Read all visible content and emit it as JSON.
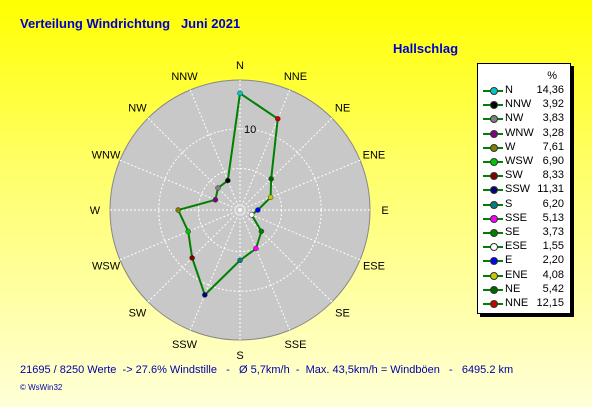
{
  "title": "Verteilung Windrichtung   Juni 2021",
  "station": "Hallschlag",
  "legend_unit": "%",
  "footer": "21695 / 8250 Werte  -> 27.6% Windstille   -   Ø 5,7km/h  -  Max. 43,5km/h = Windböen   -   6495.2 km",
  "credit": "© WsWin32",
  "chart_data": {
    "type": "radar",
    "title": "Verteilung Windrichtung   Juni 2021",
    "radial_tick": "10",
    "rmax": 16,
    "grid": true,
    "legend_position": "right",
    "directions": [
      "N",
      "NNE",
      "NE",
      "ENE",
      "E",
      "ESE",
      "SE",
      "SSE",
      "S",
      "SSW",
      "SW",
      "WSW",
      "W",
      "WNW",
      "NW",
      "NNW"
    ],
    "values": [
      14.36,
      12.15,
      5.42,
      4.08,
      2.2,
      1.55,
      3.73,
      5.13,
      6.2,
      11.31,
      8.33,
      6.9,
      7.61,
      3.28,
      3.83,
      3.92
    ],
    "line_color": "#008000",
    "legend": [
      {
        "name": "N",
        "value": "14,36",
        "color": "#00c8c8"
      },
      {
        "name": "NNW",
        "value": "3,92",
        "color": "#000000"
      },
      {
        "name": "NW",
        "value": "3,83",
        "color": "#808080"
      },
      {
        "name": "WNW",
        "value": "3,28",
        "color": "#800080"
      },
      {
        "name": "W",
        "value": "7,61",
        "color": "#808000"
      },
      {
        "name": "WSW",
        "value": "6,90",
        "color": "#00c800"
      },
      {
        "name": "SW",
        "value": "8,33",
        "color": "#800000"
      },
      {
        "name": "SSW",
        "value": "11,31",
        "color": "#000080"
      },
      {
        "name": "S",
        "value": "6,20",
        "color": "#008080"
      },
      {
        "name": "SSE",
        "value": "5,13",
        "color": "#ff00ff"
      },
      {
        "name": "SE",
        "value": "3,73",
        "color": "#008000"
      },
      {
        "name": "ESE",
        "value": "1,55",
        "color": "#ffffff"
      },
      {
        "name": "E",
        "value": "2,20",
        "color": "#0000ff"
      },
      {
        "name": "ENE",
        "value": "4,08",
        "color": "#c8c800"
      },
      {
        "name": "NE",
        "value": "5,42",
        "color": "#006400"
      },
      {
        "name": "NNE",
        "value": "12,15",
        "color": "#c80000"
      }
    ]
  }
}
